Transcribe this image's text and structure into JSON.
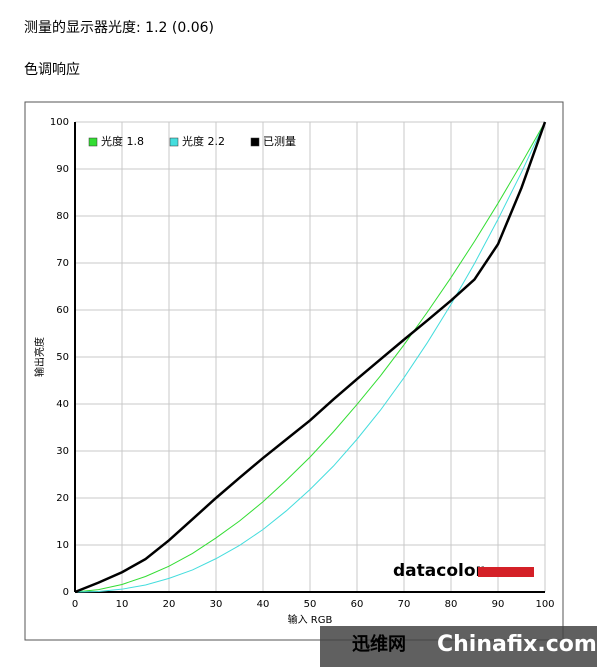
{
  "header": {
    "luminance": "测量的显示器光度:  1.2 (0.06)",
    "section": "色调响应"
  },
  "chart_data": {
    "type": "line",
    "x_label": "输入 RGB",
    "y_label": "输出亮度",
    "x": [
      0,
      5,
      10,
      15,
      20,
      25,
      30,
      35,
      40,
      45,
      50,
      55,
      60,
      65,
      70,
      75,
      80,
      85,
      90,
      95,
      100
    ],
    "series": [
      {
        "name": "光度 1.8",
        "color": "#33dd33",
        "width": 1,
        "values": [
          0,
          0.5,
          1.6,
          3.3,
          5.5,
          8.2,
          11.5,
          15.1,
          19.2,
          23.8,
          28.7,
          34.1,
          39.9,
          46.0,
          52.6,
          59.6,
          66.9,
          74.6,
          82.7,
          91.2,
          100
        ]
      },
      {
        "name": "光度 2.2",
        "color": "#44dddd",
        "width": 1,
        "values": [
          0,
          0.1,
          0.6,
          1.5,
          2.9,
          4.7,
          7.1,
          9.9,
          13.3,
          17.3,
          21.8,
          26.8,
          32.5,
          38.7,
          45.6,
          53.1,
          61.2,
          69.9,
          79.3,
          89.3,
          100
        ]
      },
      {
        "name": "已测量",
        "color": "#000000",
        "width": 2.5,
        "values": [
          0,
          2,
          4.2,
          7,
          11,
          15.5,
          20,
          24.3,
          28.5,
          32.5,
          36.5,
          41,
          45.3,
          49.5,
          53.7,
          57.8,
          62,
          66.5,
          74,
          86,
          100
        ]
      }
    ],
    "xlim": [
      0,
      100
    ],
    "ylim": [
      0,
      100
    ],
    "xticks": [
      0,
      10,
      20,
      30,
      40,
      50,
      60,
      70,
      80,
      90,
      100
    ],
    "yticks": [
      0,
      10,
      20,
      30,
      40,
      50,
      60,
      70,
      80,
      90,
      100
    ],
    "grid": true,
    "legend": "top-left",
    "logo": "datacolor"
  },
  "watermark": {
    "site": "迅维网",
    "domain": "Chinafix.com"
  }
}
